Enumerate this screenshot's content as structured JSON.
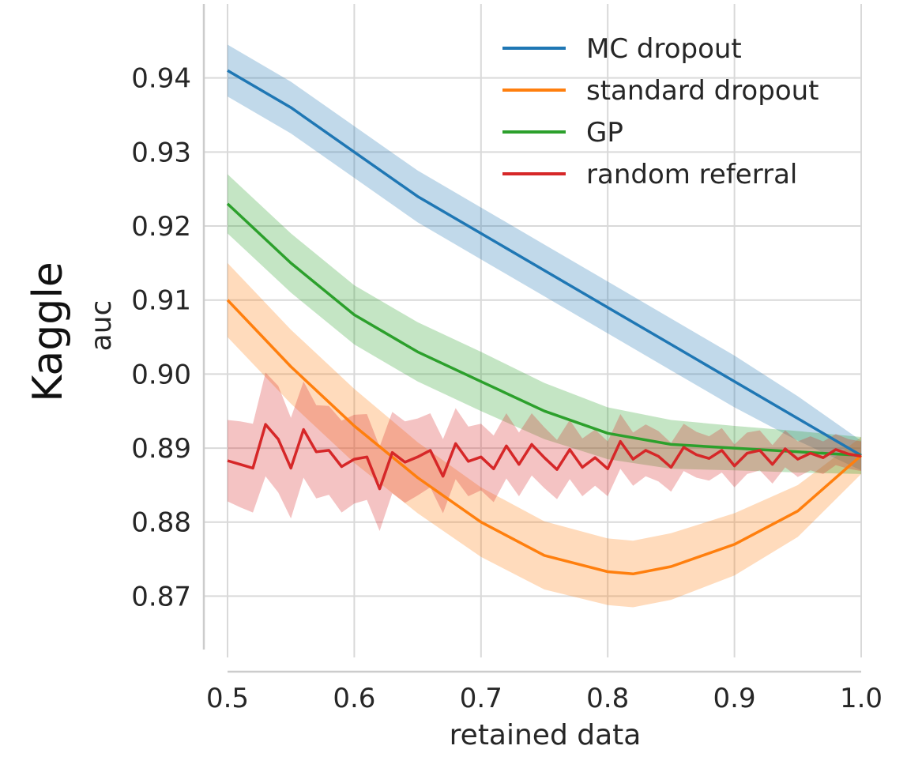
{
  "chart_data": {
    "type": "line",
    "row_label": "Kaggle",
    "xlabel": "retained data",
    "ylabel": "auc",
    "xlim": [
      0.5,
      1.0
    ],
    "ylim": [
      0.863,
      0.95
    ],
    "x_ticks": [
      0.5,
      0.6,
      0.7,
      0.8,
      0.9,
      1.0
    ],
    "x_tick_labels": [
      "0.5",
      "0.6",
      "0.7",
      "0.8",
      "0.9",
      "1.0"
    ],
    "y_ticks": [
      0.87,
      0.88,
      0.89,
      0.9,
      0.91,
      0.92,
      0.93,
      0.94
    ],
    "y_tick_labels": [
      "0.87",
      "0.88",
      "0.89",
      "0.90",
      "0.91",
      "0.92",
      "0.93",
      "0.94"
    ],
    "grid": true,
    "legend_position": "top-right",
    "series": [
      {
        "name": "MC dropout",
        "color": "#1f77b4",
        "x": [
          0.5,
          0.55,
          0.6,
          0.65,
          0.7,
          0.75,
          0.8,
          0.85,
          0.9,
          0.95,
          1.0
        ],
        "values": [
          0.941,
          0.936,
          0.93,
          0.924,
          0.919,
          0.914,
          0.909,
          0.904,
          0.899,
          0.894,
          0.889
        ],
        "band": [
          0.0035,
          0.0035,
          0.0035,
          0.0035,
          0.0035,
          0.0035,
          0.0035,
          0.0035,
          0.0035,
          0.003,
          0.002
        ]
      },
      {
        "name": "standard dropout",
        "color": "#ff7f0e",
        "x": [
          0.5,
          0.55,
          0.6,
          0.65,
          0.7,
          0.75,
          0.8,
          0.82,
          0.85,
          0.9,
          0.95,
          1.0
        ],
        "values": [
          0.91,
          0.901,
          0.893,
          0.886,
          0.88,
          0.8755,
          0.8733,
          0.873,
          0.874,
          0.877,
          0.8815,
          0.889
        ],
        "band": [
          0.005,
          0.005,
          0.005,
          0.0048,
          0.0047,
          0.0046,
          0.0045,
          0.0045,
          0.0045,
          0.0042,
          0.0035,
          0.0025
        ]
      },
      {
        "name": "GP",
        "color": "#2ca02c",
        "x": [
          0.5,
          0.55,
          0.6,
          0.65,
          0.7,
          0.75,
          0.8,
          0.85,
          0.9,
          0.95,
          1.0
        ],
        "values": [
          0.923,
          0.915,
          0.908,
          0.903,
          0.899,
          0.895,
          0.892,
          0.8905,
          0.89,
          0.8895,
          0.889
        ],
        "band": [
          0.004,
          0.004,
          0.004,
          0.004,
          0.004,
          0.0038,
          0.0035,
          0.0033,
          0.003,
          0.0028,
          0.0025
        ]
      },
      {
        "name": "random referral",
        "color": "#d62728",
        "x": [
          0.5,
          0.51,
          0.52,
          0.53,
          0.54,
          0.55,
          0.56,
          0.57,
          0.58,
          0.59,
          0.6,
          0.61,
          0.62,
          0.63,
          0.64,
          0.65,
          0.66,
          0.67,
          0.68,
          0.69,
          0.7,
          0.71,
          0.72,
          0.73,
          0.74,
          0.75,
          0.76,
          0.77,
          0.78,
          0.79,
          0.8,
          0.81,
          0.82,
          0.83,
          0.84,
          0.85,
          0.86,
          0.87,
          0.88,
          0.89,
          0.9,
          0.91,
          0.92,
          0.93,
          0.94,
          0.95,
          0.96,
          0.97,
          0.98,
          0.99,
          1.0
        ],
        "values": [
          0.8883,
          0.8878,
          0.8873,
          0.8932,
          0.8912,
          0.8873,
          0.8925,
          0.8895,
          0.8897,
          0.8875,
          0.8885,
          0.8888,
          0.8845,
          0.8894,
          0.8881,
          0.8888,
          0.8897,
          0.8862,
          0.8906,
          0.8882,
          0.8888,
          0.8872,
          0.8903,
          0.8878,
          0.8905,
          0.8887,
          0.8871,
          0.8898,
          0.8874,
          0.8887,
          0.8872,
          0.8909,
          0.8885,
          0.8897,
          0.8889,
          0.8874,
          0.8901,
          0.8891,
          0.8886,
          0.8897,
          0.8876,
          0.8893,
          0.8897,
          0.8878,
          0.8899,
          0.8885,
          0.8893,
          0.8887,
          0.8898,
          0.8892,
          0.8889
        ],
        "band": [
          0.0055,
          0.0058,
          0.006,
          0.007,
          0.0072,
          0.0068,
          0.0065,
          0.0063,
          0.006,
          0.0062,
          0.006,
          0.0058,
          0.0057,
          0.0055,
          0.0055,
          0.0052,
          0.005,
          0.005,
          0.0048,
          0.0047,
          0.0045,
          0.0045,
          0.0044,
          0.0043,
          0.0042,
          0.0041,
          0.004,
          0.004,
          0.0039,
          0.0038,
          0.0037,
          0.0037,
          0.0036,
          0.0035,
          0.0034,
          0.0033,
          0.0032,
          0.0031,
          0.003,
          0.003,
          0.0029,
          0.0028,
          0.0027,
          0.0026,
          0.0025,
          0.0024,
          0.0023,
          0.0022,
          0.0021,
          0.002,
          0.002
        ]
      }
    ]
  }
}
